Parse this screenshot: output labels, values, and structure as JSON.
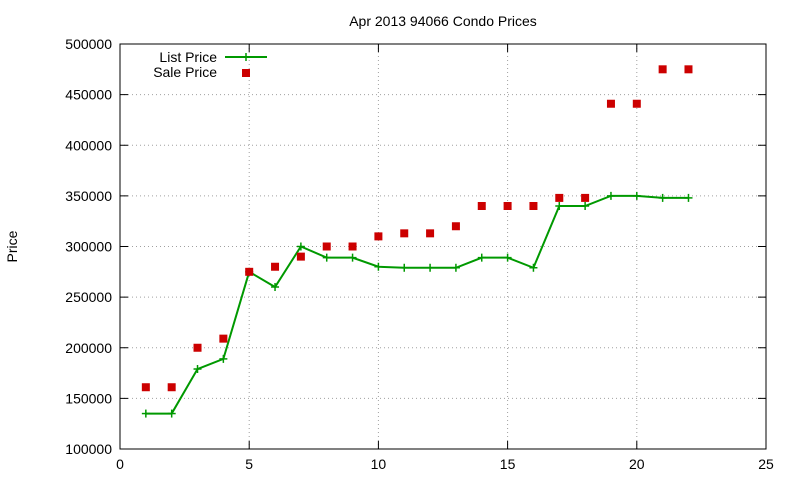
{
  "chart_data": {
    "type": "line",
    "title": "Apr 2013 94066 Condo Prices",
    "xlabel": "",
    "ylabel": "Price",
    "xlim": [
      0,
      25
    ],
    "ylim": [
      100000,
      500000
    ],
    "xticks": [
      0,
      5,
      10,
      15,
      20,
      25
    ],
    "yticks": [
      100000,
      150000,
      200000,
      250000,
      300000,
      350000,
      400000,
      450000,
      500000
    ],
    "grid": true,
    "legend_position": "top-left",
    "series": [
      {
        "name": "List Price",
        "style": "line+cross",
        "color": "#009900",
        "x": [
          1,
          2,
          3,
          4,
          5,
          6,
          7,
          8,
          9,
          10,
          11,
          12,
          13,
          14,
          15,
          16,
          17,
          18,
          19,
          20,
          21,
          22
        ],
        "y": [
          135000,
          135000,
          179000,
          189000,
          275000,
          260000,
          300000,
          289000,
          289000,
          280000,
          279000,
          279000,
          279000,
          289000,
          289000,
          279000,
          340000,
          340000,
          350000,
          350000,
          348000,
          348000
        ]
      },
      {
        "name": "Sale Price",
        "style": "square",
        "color": "#cc0000",
        "x": [
          1,
          2,
          3,
          4,
          5,
          6,
          7,
          8,
          9,
          10,
          11,
          12,
          13,
          14,
          15,
          16,
          17,
          18,
          19,
          20,
          21,
          22
        ],
        "y": [
          161000,
          161000,
          200000,
          209000,
          275000,
          280000,
          290000,
          300000,
          300000,
          310000,
          313000,
          313000,
          320000,
          340000,
          340000,
          340000,
          348000,
          348000,
          441000,
          441000,
          475000,
          475000
        ]
      }
    ]
  }
}
